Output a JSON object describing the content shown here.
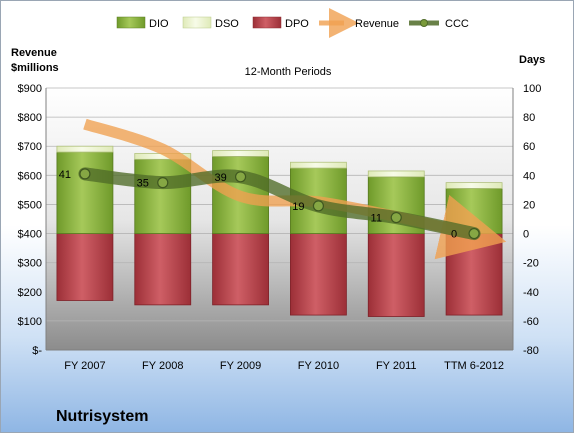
{
  "chart_data": {
    "type": "bar",
    "company": "Nutrisystem",
    "title": "12-Month Periods",
    "left_axis_label": [
      "Revenue",
      "$millions"
    ],
    "right_axis_label": "Days",
    "categories": [
      "FY 2007",
      "FY 2008",
      "FY 2009",
      "FY 2010",
      "FY 2011",
      "TTM 6-2012"
    ],
    "left_axis": {
      "min": 0,
      "max": 900,
      "step": 100,
      "tick_labels": [
        "$-",
        "$100",
        "$200",
        "$300",
        "$400",
        "$500",
        "$600",
        "$700",
        "$800",
        "$900"
      ]
    },
    "right_axis": {
      "min": -80,
      "max": 100,
      "step": 20,
      "tick_labels": [
        "-80",
        "-60",
        "-40",
        "-20",
        "0",
        "20",
        "40",
        "60",
        "80",
        "100"
      ]
    },
    "series": [
      {
        "name": "DIO",
        "type": "stacked-bar",
        "axis": "right",
        "color": "#8cb23c",
        "values": [
          56,
          51,
          53,
          45,
          39,
          31
        ]
      },
      {
        "name": "DSO",
        "type": "stacked-bar",
        "axis": "right",
        "color": "#eef5d5",
        "values": [
          4,
          4,
          4,
          4,
          4,
          4
        ]
      },
      {
        "name": "DPO",
        "type": "stacked-bar-negative",
        "axis": "right",
        "color": "#b8434a",
        "values": [
          -46,
          -49,
          -49,
          -56,
          -57,
          -56
        ]
      },
      {
        "name": "Revenue",
        "type": "arrow-line",
        "axis": "left",
        "color": "#f0a050",
        "values": [
          776,
          690,
          528,
          509,
          458,
          397
        ]
      },
      {
        "name": "CCC",
        "type": "line",
        "axis": "right",
        "color": "#4f6b28",
        "values": [
          41,
          35,
          39,
          19,
          11,
          0
        ]
      }
    ],
    "grid": true,
    "legend_position": "top"
  }
}
